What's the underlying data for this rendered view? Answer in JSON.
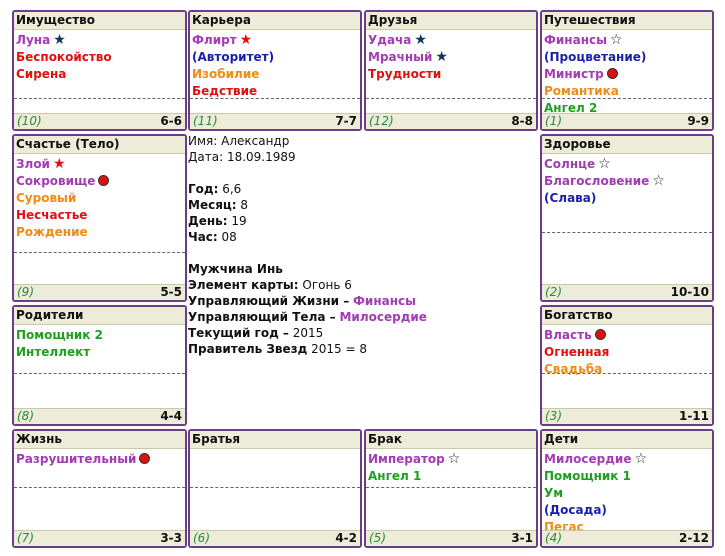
{
  "palaces": [
    {
      "name": "Имущество",
      "number": "(10)",
      "age": "6-6",
      "stars": [
        {
          "text": "Луна",
          "color": "purple",
          "icon": "blue-star-icon"
        },
        {
          "text": "Беспокойство",
          "color": "red",
          "icon": ""
        },
        {
          "text": "Сирена",
          "color": "red",
          "icon": ""
        }
      ]
    },
    {
      "name": "Карьера",
      "number": "(11)",
      "age": "7-7",
      "stars": [
        {
          "text": "Флирт",
          "color": "purple",
          "icon": "red-star-icon"
        },
        {
          "text": "(Авторитет)",
          "color": "blue",
          "icon": ""
        },
        {
          "text": "Изобилие",
          "color": "orange",
          "icon": ""
        },
        {
          "text": "Бедствие",
          "color": "red",
          "icon": ""
        }
      ]
    },
    {
      "name": "Друзья",
      "number": "(12)",
      "age": "8-8",
      "stars": [
        {
          "text": "Удача",
          "color": "purple",
          "icon": "blue-star-icon"
        },
        {
          "text": "Мрачный",
          "color": "purple",
          "icon": "blue-star-icon"
        },
        {
          "text": "Трудности",
          "color": "red",
          "icon": ""
        }
      ]
    },
    {
      "name": "Путешествия",
      "number": "(1)",
      "age": "9-9",
      "stars": [
        {
          "text": "Финансы",
          "color": "purple",
          "icon": "outline-star-icon"
        },
        {
          "text": "(Процветание)",
          "color": "blue",
          "icon": ""
        },
        {
          "text": "Министр",
          "color": "purple",
          "icon": "red-dot-icon"
        },
        {
          "text": "Романтика",
          "color": "orange",
          "icon": ""
        },
        {
          "text": "Ангел 2",
          "color": "green",
          "icon": ""
        }
      ]
    },
    {
      "name": "Счастье (Тело)",
      "number": "(9)",
      "age": "5-5",
      "stars": [
        {
          "text": "Злой",
          "color": "purple",
          "icon": "red-star-icon"
        },
        {
          "text": "Сокровище",
          "color": "purple",
          "icon": "red-dot-icon"
        },
        {
          "text": "Суровый",
          "color": "orange",
          "icon": ""
        },
        {
          "text": "Несчастье",
          "color": "red",
          "icon": ""
        },
        {
          "text": "Рождение",
          "color": "orange",
          "icon": ""
        }
      ]
    },
    {
      "name": "Здоровье",
      "number": "(2)",
      "age": "10-10",
      "stars": [
        {
          "text": "Солнце",
          "color": "purple",
          "icon": "outline-star-icon"
        },
        {
          "text": "Благословение",
          "color": "purple",
          "icon": "outline-star-icon"
        },
        {
          "text": "(Слава)",
          "color": "blue",
          "icon": ""
        }
      ]
    },
    {
      "name": "Родители",
      "number": "(8)",
      "age": "4-4",
      "stars": [
        {
          "text": "Помощник 2",
          "color": "green",
          "icon": ""
        },
        {
          "text": "Интеллект",
          "color": "green",
          "icon": ""
        }
      ]
    },
    {
      "name": "Богатство",
      "number": "(3)",
      "age": "1-11",
      "stars": [
        {
          "text": "Власть",
          "color": "purple",
          "icon": "red-dot-icon"
        },
        {
          "text": "Огненная",
          "color": "red",
          "icon": ""
        },
        {
          "text": "Свадьба",
          "color": "orange",
          "icon": ""
        }
      ]
    },
    {
      "name": "Жизнь",
      "number": "(7)",
      "age": "3-3",
      "stars": [
        {
          "text": "Разрушительный",
          "color": "purple",
          "icon": "red-dot-icon"
        }
      ]
    },
    {
      "name": "Братья",
      "number": "(6)",
      "age": "4-2",
      "stars": []
    },
    {
      "name": "Брак",
      "number": "(5)",
      "age": "3-1",
      "stars": [
        {
          "text": "Император",
          "color": "purple",
          "icon": "outline-star-icon"
        },
        {
          "text": "Ангел 1",
          "color": "green",
          "icon": ""
        }
      ]
    },
    {
      "name": "Дети",
      "number": "(4)",
      "age": "2-12",
      "stars": [
        {
          "text": "Милосердие",
          "color": "purple",
          "icon": "outline-star-icon"
        },
        {
          "text": "Помощник 1",
          "color": "green",
          "icon": ""
        },
        {
          "text": "Ум",
          "color": "green",
          "icon": ""
        },
        {
          "text": "(Досада)",
          "color": "blue",
          "icon": ""
        },
        {
          "text": "Пегас",
          "color": "orange",
          "icon": ""
        }
      ]
    }
  ],
  "info": {
    "name_label": "Имя:",
    "name_value": "Александр",
    "date_label": "Дата:",
    "date_value": "18.09.1989",
    "year_label": "Год:",
    "year_value": "6,6",
    "month_label": "Месяц:",
    "month_value": "8",
    "day_label": "День:",
    "day_value": "19",
    "hour_label": "Час:",
    "hour_value": "08",
    "gender": "Мужчина Инь",
    "element_label": "Элемент карты:",
    "element_value": "Огонь 6",
    "life_ruler_label": "Управляющий Жизни –",
    "life_ruler_value": "Финансы",
    "body_ruler_label": "Управляющий Тела –",
    "body_ruler_value": "Милосердие",
    "current_year_label": "Текущий год –",
    "current_year_value": "2015",
    "star_ruler_label": "Правитель Звезд",
    "star_ruler_value": "2015 = 8"
  },
  "colors": {
    "purple": "#a33bb5",
    "red": "#e01010",
    "blue": "#1a1fa8",
    "orange": "#f08c14",
    "green": "#1ea01e",
    "border": "#6a3d86",
    "header_bg": "#ececd8"
  }
}
